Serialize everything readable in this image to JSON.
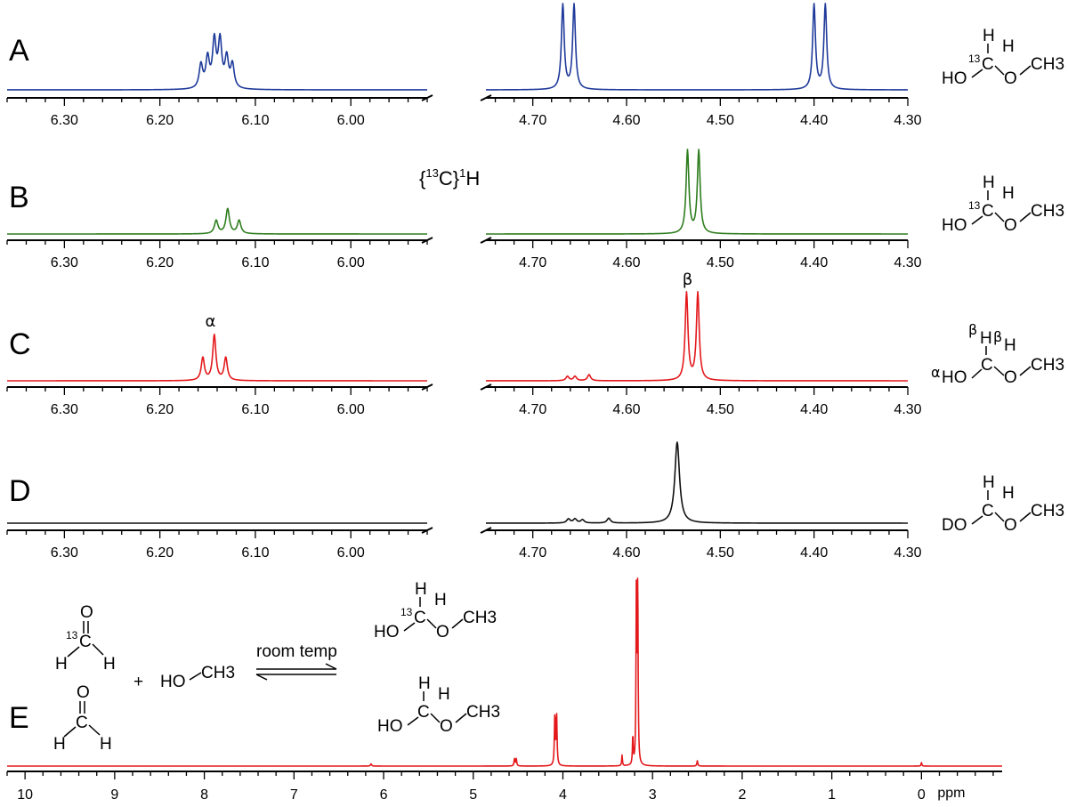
{
  "chart_data": [
    {
      "panel": "A",
      "type": "line",
      "color": "#1f3a9a",
      "x_unit": "ppm",
      "left_axis": {
        "range": [
          6.36,
          5.92
        ],
        "ticks": [
          "6.30",
          "6.20",
          "6.10",
          "6.00"
        ]
      },
      "right_axis": {
        "range": [
          4.75,
          4.3
        ],
        "ticks": [
          "4.70",
          "4.60",
          "4.50",
          "4.40",
          "4.30"
        ]
      },
      "peaks": [
        {
          "ppm": 6.157,
          "h": 0.28,
          "w": 0.0022
        },
        {
          "ppm": 6.15,
          "h": 0.35,
          "w": 0.0022
        },
        {
          "ppm": 6.143,
          "h": 0.55,
          "w": 0.0022
        },
        {
          "ppm": 6.137,
          "h": 0.55,
          "w": 0.0022
        },
        {
          "ppm": 6.13,
          "h": 0.35,
          "w": 0.0022
        },
        {
          "ppm": 6.124,
          "h": 0.28,
          "w": 0.0022
        },
        {
          "ppm": 4.668,
          "h": 1.0,
          "w": 0.0018
        },
        {
          "ppm": 4.656,
          "h": 1.0,
          "w": 0.0018
        },
        {
          "ppm": 4.4,
          "h": 1.0,
          "w": 0.0018
        },
        {
          "ppm": 4.388,
          "h": 1.0,
          "w": 0.0018
        }
      ]
    },
    {
      "panel": "B",
      "type": "line",
      "color": "#2e7d1e",
      "x_unit": "ppm",
      "left_axis": {
        "range": [
          6.36,
          5.92
        ],
        "ticks": [
          "6.30",
          "6.20",
          "6.10",
          "6.00"
        ]
      },
      "right_axis": {
        "range": [
          4.75,
          4.3
        ],
        "ticks": [
          "4.70",
          "4.60",
          "4.50",
          "4.40",
          "4.30"
        ]
      },
      "peaks": [
        {
          "ppm": 6.141,
          "h": 0.16,
          "w": 0.0022
        },
        {
          "ppm": 6.129,
          "h": 0.3,
          "w": 0.0022
        },
        {
          "ppm": 6.117,
          "h": 0.16,
          "w": 0.0022
        },
        {
          "ppm": 4.535,
          "h": 1.0,
          "w": 0.0018
        },
        {
          "ppm": 4.523,
          "h": 1.0,
          "w": 0.0018
        }
      ]
    },
    {
      "panel": "C",
      "type": "line",
      "color": "#e3191c",
      "x_unit": "ppm",
      "left_axis": {
        "range": [
          6.36,
          5.92
        ],
        "ticks": [
          "6.30",
          "6.20",
          "6.10",
          "6.00"
        ]
      },
      "right_axis": {
        "range": [
          4.75,
          4.3
        ],
        "ticks": [
          "4.70",
          "4.60",
          "4.50",
          "4.40",
          "4.30"
        ]
      },
      "peaks": [
        {
          "ppm": 6.155,
          "h": 0.26,
          "w": 0.002
        },
        {
          "ppm": 6.143,
          "h": 0.52,
          "w": 0.002
        },
        {
          "ppm": 6.131,
          "h": 0.26,
          "w": 0.002
        },
        {
          "ppm": 4.663,
          "h": 0.05,
          "w": 0.002
        },
        {
          "ppm": 4.655,
          "h": 0.05,
          "w": 0.002
        },
        {
          "ppm": 4.64,
          "h": 0.07,
          "w": 0.002
        },
        {
          "ppm": 4.536,
          "h": 1.0,
          "w": 0.0018
        },
        {
          "ppm": 4.524,
          "h": 1.0,
          "w": 0.0018
        }
      ],
      "annotations": [
        {
          "label": "α",
          "ppm": 6.147,
          "side": "left"
        },
        {
          "label": "β",
          "ppm": 4.535,
          "side": "right"
        }
      ]
    },
    {
      "panel": "D",
      "type": "line",
      "color": "#111111",
      "x_unit": "ppm",
      "left_axis": {
        "range": [
          6.36,
          5.92
        ],
        "ticks": [
          "6.30",
          "6.20",
          "6.10",
          "6.00"
        ]
      },
      "right_axis": {
        "range": [
          4.75,
          4.3
        ],
        "ticks": [
          "4.70",
          "4.60",
          "4.50",
          "4.40",
          "4.30"
        ]
      },
      "peaks": [
        {
          "ppm": 4.662,
          "h": 0.05,
          "w": 0.0022
        },
        {
          "ppm": 4.655,
          "h": 0.05,
          "w": 0.0022
        },
        {
          "ppm": 4.647,
          "h": 0.04,
          "w": 0.0022
        },
        {
          "ppm": 4.619,
          "h": 0.06,
          "w": 0.0022
        },
        {
          "ppm": 4.546,
          "h": 1.0,
          "w": 0.003
        }
      ]
    },
    {
      "panel": "E",
      "type": "line",
      "color": "#e3191c",
      "x_unit": "ppm",
      "axis": {
        "range": [
          10.2,
          -0.9
        ],
        "ticks": [
          "10",
          "9",
          "8",
          "7",
          "6",
          "5",
          "4",
          "3",
          "2",
          "1",
          "0"
        ],
        "unit_label": "ppm"
      },
      "peaks": [
        {
          "ppm": 6.14,
          "h": 0.012,
          "w": 0.008
        },
        {
          "ppm": 4.54,
          "h": 0.04,
          "w": 0.006
        },
        {
          "ppm": 4.52,
          "h": 0.04,
          "w": 0.006
        },
        {
          "ppm": 4.09,
          "h": 0.28,
          "w": 0.006
        },
        {
          "ppm": 4.07,
          "h": 0.28,
          "w": 0.006
        },
        {
          "ppm": 3.34,
          "h": 0.06,
          "w": 0.005
        },
        {
          "ppm": 3.22,
          "h": 0.16,
          "w": 0.005
        },
        {
          "ppm": 3.18,
          "h": 1.0,
          "w": 0.005
        },
        {
          "ppm": 3.165,
          "h": 1.0,
          "w": 0.005
        },
        {
          "ppm": 2.5,
          "h": 0.03,
          "w": 0.006
        },
        {
          "ppm": 0.0,
          "h": 0.02,
          "w": 0.005
        }
      ]
    }
  ],
  "panel_letters": [
    "A",
    "B",
    "C",
    "D",
    "E"
  ],
  "decoupled_label": {
    "base": "{",
    "iso": "13",
    "mid": "C}",
    "nuc": "1",
    "end": "H"
  },
  "annotations": {
    "alpha": "α",
    "beta": "β"
  },
  "structures": {
    "labelled_hemiacetal": {
      "h": "H",
      "iso": "13",
      "c": "C",
      "ho": "HO",
      "o": "O",
      "ch3": "CH3"
    },
    "assigned_hemiacetal": {
      "beta": "β",
      "h": "H",
      "alpha": "α",
      "ho": "HO",
      "c": "C",
      "o": "O",
      "ch3": "CH3"
    },
    "deuterated_hemiacetal": {
      "h": "H",
      "do": "DO",
      "c": "C",
      "o": "O",
      "ch3": "CH3"
    }
  },
  "scheme": {
    "formaldehyde_13c": {
      "o": "O",
      "iso": "13",
      "c": "C",
      "h": "H"
    },
    "formaldehyde": {
      "o": "O",
      "c": "C",
      "h": "H"
    },
    "plus": "+",
    "methanol": {
      "ho": "HO",
      "ch3": "CH3"
    },
    "arrow_label": "room temp"
  }
}
